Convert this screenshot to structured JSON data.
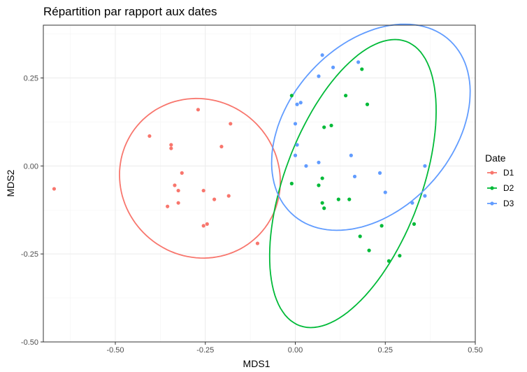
{
  "chart_data": {
    "type": "scatter",
    "title": "Répartition par rapport aux dates",
    "xlabel": "MDS1",
    "ylabel": "MDS2",
    "xlim": [
      -0.7,
      0.5
    ],
    "ylim": [
      -0.5,
      0.4
    ],
    "x_ticks": [
      -0.5,
      -0.25,
      0.0,
      0.25,
      0.5
    ],
    "x_tick_labels": [
      "-0.50",
      "-0.25",
      "0.00",
      "0.25",
      "0.50"
    ],
    "y_ticks": [
      -0.5,
      -0.25,
      0.0,
      0.25
    ],
    "y_tick_labels": [
      "-0.50",
      "-0.25",
      "0.00",
      "0.25"
    ],
    "grid": true,
    "legend": {
      "title": "Date",
      "position": "right"
    },
    "series": [
      {
        "name": "D1",
        "color": "#F8766D",
        "points": [
          [
            -0.67,
            -0.065
          ],
          [
            -0.405,
            0.085
          ],
          [
            -0.355,
            -0.115
          ],
          [
            -0.345,
            0.06
          ],
          [
            -0.345,
            0.05
          ],
          [
            -0.335,
            -0.055
          ],
          [
            -0.325,
            -0.105
          ],
          [
            -0.325,
            -0.07
          ],
          [
            -0.315,
            -0.02
          ],
          [
            -0.27,
            0.16
          ],
          [
            -0.255,
            -0.07
          ],
          [
            -0.255,
            -0.17
          ],
          [
            -0.245,
            -0.165
          ],
          [
            -0.225,
            -0.095
          ],
          [
            -0.205,
            0.055
          ],
          [
            -0.185,
            -0.085
          ],
          [
            -0.18,
            0.12
          ],
          [
            -0.105,
            -0.22
          ]
        ],
        "ellipse": {
          "center": [
            -0.265,
            -0.035
          ],
          "semi_axes": [
            0.23,
            0.22
          ],
          "angle_deg": -55
        }
      },
      {
        "name": "D2",
        "color": "#00BA38",
        "points": [
          [
            -0.01,
            0.2
          ],
          [
            -0.01,
            -0.05
          ],
          [
            0.065,
            -0.055
          ],
          [
            0.075,
            -0.035
          ],
          [
            0.075,
            -0.105
          ],
          [
            0.08,
            0.11
          ],
          [
            0.08,
            -0.12
          ],
          [
            0.1,
            0.115
          ],
          [
            0.12,
            -0.095
          ],
          [
            0.14,
            0.2
          ],
          [
            0.15,
            -0.095
          ],
          [
            0.18,
            -0.2
          ],
          [
            0.185,
            0.275
          ],
          [
            0.2,
            0.175
          ],
          [
            0.205,
            -0.24
          ],
          [
            0.24,
            -0.17
          ],
          [
            0.26,
            -0.27
          ],
          [
            0.29,
            -0.255
          ],
          [
            0.33,
            -0.165
          ]
        ],
        "ellipse": {
          "center": [
            0.16,
            -0.05
          ],
          "semi_axes": [
            0.43,
            0.19
          ],
          "angle_deg": 70
        }
      },
      {
        "name": "D3",
        "color": "#619CFF",
        "points": [
          [
            0.0,
            0.03
          ],
          [
            0.0,
            0.12
          ],
          [
            0.005,
            0.175
          ],
          [
            0.005,
            0.06
          ],
          [
            0.015,
            0.18
          ],
          [
            0.03,
            0.0
          ],
          [
            0.065,
            0.01
          ],
          [
            0.065,
            0.255
          ],
          [
            0.075,
            0.315
          ],
          [
            0.105,
            0.28
          ],
          [
            0.155,
            0.03
          ],
          [
            0.165,
            -0.03
          ],
          [
            0.175,
            0.295
          ],
          [
            0.235,
            -0.02
          ],
          [
            0.25,
            -0.075
          ],
          [
            0.325,
            -0.105
          ],
          [
            0.36,
            0.0
          ],
          [
            0.36,
            -0.085
          ]
        ],
        "ellipse": {
          "center": [
            0.21,
            0.11
          ],
          "semi_axes": [
            0.33,
            0.23
          ],
          "angle_deg": 50
        }
      }
    ]
  }
}
